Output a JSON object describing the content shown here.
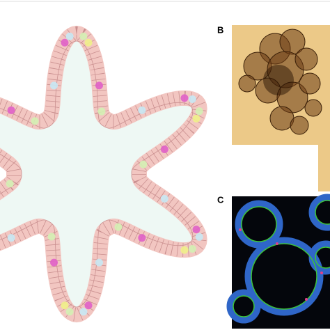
{
  "panels": [
    {
      "label": "B"
    },
    {
      "label": "C"
    }
  ]
}
